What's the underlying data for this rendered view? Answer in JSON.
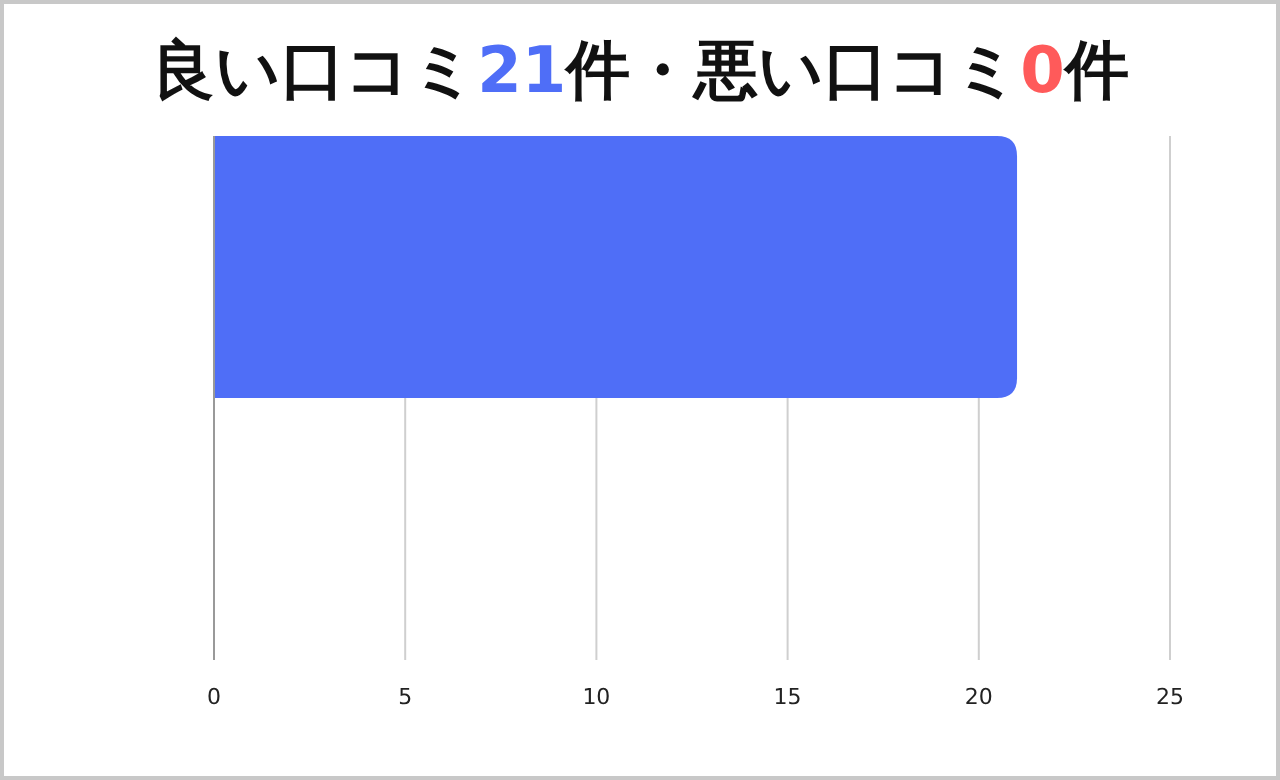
{
  "chart_data": {
    "type": "bar",
    "orientation": "horizontal",
    "title": "良い口コミ21件・悪い口コミ0件",
    "categories": [
      null
    ],
    "series": [
      {
        "color": "#4f6ef7",
        "values": [
          21
        ]
      },
      {
        "color": "#ff5a5a",
        "values": [
          0
        ]
      }
    ],
    "xlim": [
      0,
      25
    ],
    "xticks": [
      0,
      5,
      10,
      15,
      20,
      25
    ],
    "grid": "x"
  }
}
